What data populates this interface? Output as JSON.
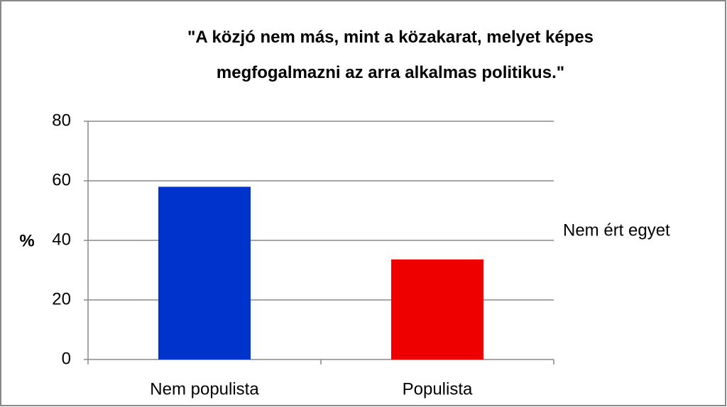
{
  "chart_data": {
    "type": "bar",
    "title": "\"A közjó nem más, mint a közakarat, melyet képes megfogalmazni az arra alkalmas politikus.\"",
    "y_label": "%",
    "categories": [
      "Nem populista",
      "Populista"
    ],
    "series": [
      {
        "name": "Nem ért egyet",
        "colors": [
          "#0033cc",
          "#ee0000"
        ],
        "values": [
          58,
          33.6
        ]
      }
    ],
    "ylim": [
      0,
      80
    ],
    "yticks": [
      0,
      20,
      40,
      60,
      80
    ],
    "grid": true,
    "legend": "right"
  }
}
